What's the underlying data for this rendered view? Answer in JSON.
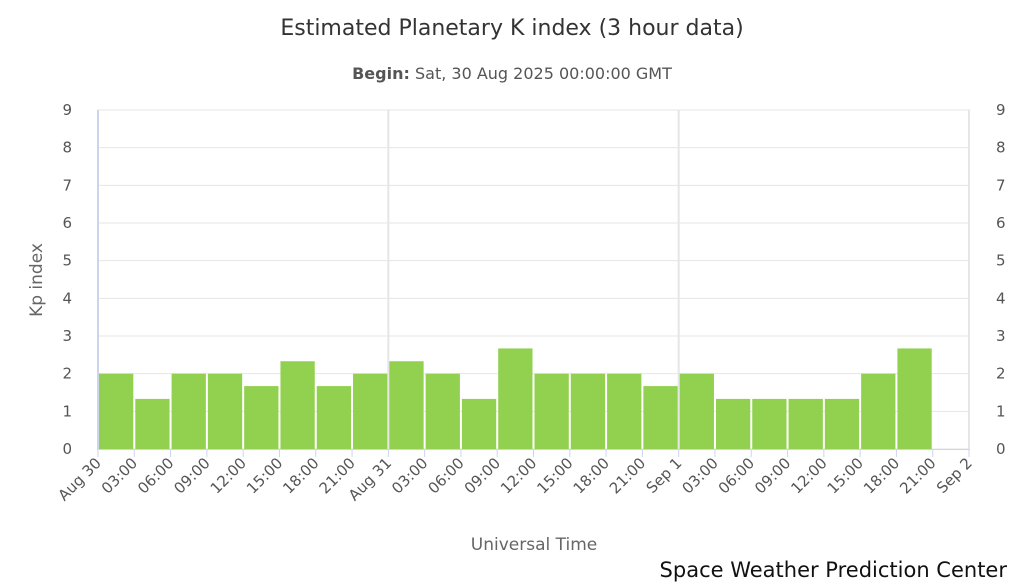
{
  "chart_data": {
    "type": "bar",
    "title": "Estimated Planetary K index (3 hour data)",
    "subtitle_label": "Begin:",
    "subtitle_value": " Sat, 30 Aug 2025 00:00:00 GMT",
    "ylabel": "Kp index",
    "xlabel": "Universal Time",
    "ylim": [
      0,
      9
    ],
    "yticks": [
      "0",
      "1",
      "2",
      "3",
      "4",
      "5",
      "6",
      "7",
      "8",
      "9"
    ],
    "x_tick_labels": [
      "Aug 30",
      "03:00",
      "06:00",
      "09:00",
      "12:00",
      "15:00",
      "18:00",
      "21:00",
      "Aug 31",
      "03:00",
      "06:00",
      "09:00",
      "12:00",
      "15:00",
      "18:00",
      "21:00",
      "Sep 1",
      "03:00",
      "06:00",
      "09:00",
      "12:00",
      "15:00",
      "18:00",
      "21:00",
      "Sep 2"
    ],
    "values": [
      2,
      1.33,
      2,
      2,
      1.67,
      2.33,
      1.67,
      2,
      2.33,
      2,
      1.33,
      2.67,
      2,
      2,
      2,
      1.67,
      2,
      1.33,
      1.33,
      1.33,
      1.33,
      2,
      2.67
    ],
    "bar_color": "#92d050",
    "grid": true,
    "right_axis_mirrors_left": true
  },
  "credit": "Space Weather Prediction Center"
}
